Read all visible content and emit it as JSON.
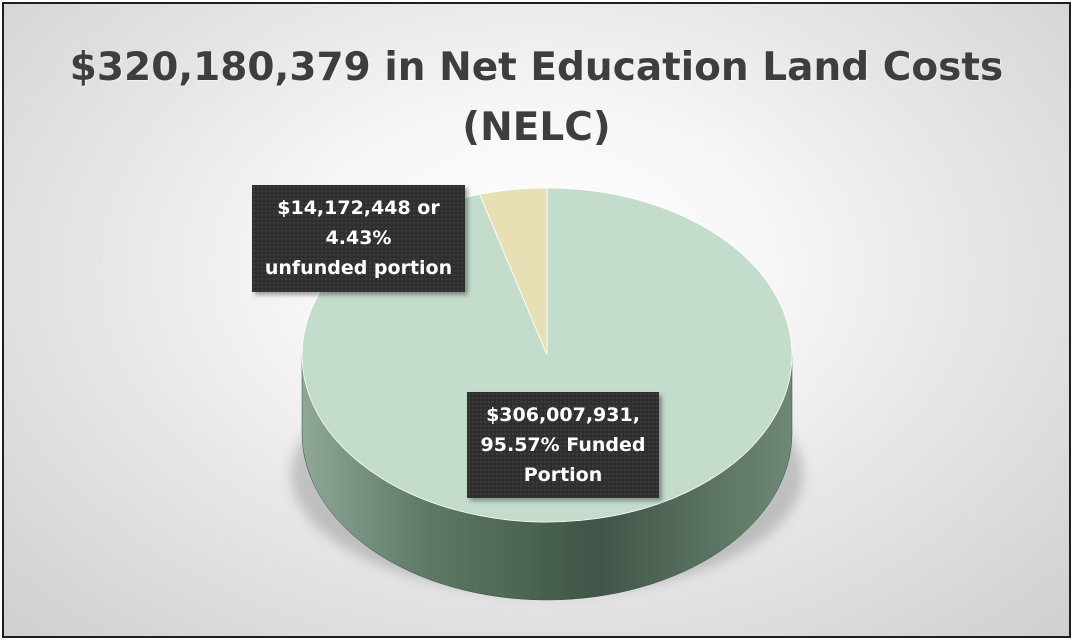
{
  "chart_data": {
    "type": "pie",
    "title_lines": [
      "$320,180,379 in Net Education Land Costs",
      "(NELC)"
    ],
    "slices": [
      {
        "label_lines": [
          "$306,007,931,",
          "95.57% Funded",
          "Portion"
        ],
        "value": 306007931,
        "percent": 95.57,
        "color": "#c4dccb"
      },
      {
        "label_lines": [
          "$14,172,448 or",
          "4.43%",
          "unfunded portion"
        ],
        "value": 14172448,
        "percent": 4.43,
        "color": "#e6e0b4"
      }
    ],
    "style": "3d",
    "legend": "none"
  }
}
